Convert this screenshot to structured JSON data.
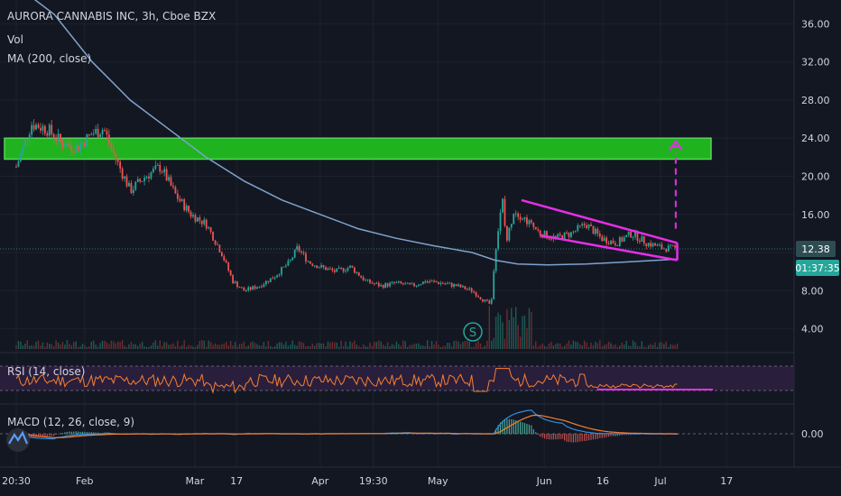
{
  "chart_data": {
    "type": "candlestick",
    "title": "AURORA CANNABIS INC, 3h, Cboe BZX",
    "indicator_labels": [
      "Vol",
      "MA (200, close)"
    ],
    "y_ticks": [
      "36.00",
      "32.00",
      "28.00",
      "24.00",
      "20.00",
      "16.00",
      "12.00",
      "8.00",
      "4.00"
    ],
    "y_tick_values": [
      36,
      32,
      28,
      24,
      20,
      16,
      12,
      8,
      4
    ],
    "ylim": [
      1.5,
      38.5
    ],
    "x_ticks": [
      {
        "label": "20:30",
        "t": 0.0
      },
      {
        "label": "Feb",
        "t": 0.09
      },
      {
        "label": "Mar",
        "t": 0.235
      },
      {
        "label": "17",
        "t": 0.29
      },
      {
        "label": "Apr",
        "t": 0.4
      },
      {
        "label": "19:30",
        "t": 0.47
      },
      {
        "label": "May",
        "t": 0.555
      },
      {
        "label": "Jun",
        "t": 0.695
      },
      {
        "label": "16",
        "t": 0.772
      },
      {
        "label": "Jul",
        "t": 0.848
      },
      {
        "label": "17",
        "t": 0.935
      }
    ],
    "price_path": [
      [
        0.0,
        21.0
      ],
      [
        0.02,
        25.5
      ],
      [
        0.04,
        25.0
      ],
      [
        0.06,
        23.5
      ],
      [
        0.08,
        23.0
      ],
      [
        0.1,
        24.5
      ],
      [
        0.115,
        25.0
      ],
      [
        0.13,
        22.0
      ],
      [
        0.15,
        18.5
      ],
      [
        0.17,
        20.0
      ],
      [
        0.19,
        21.0
      ],
      [
        0.21,
        18.0
      ],
      [
        0.23,
        16.0
      ],
      [
        0.25,
        15.0
      ],
      [
        0.27,
        12.0
      ],
      [
        0.285,
        9.0
      ],
      [
        0.3,
        8.0
      ],
      [
        0.32,
        8.5
      ],
      [
        0.34,
        9.5
      ],
      [
        0.36,
        11.0
      ],
      [
        0.37,
        12.5
      ],
      [
        0.385,
        11.0
      ],
      [
        0.4,
        10.5
      ],
      [
        0.42,
        10.0
      ],
      [
        0.44,
        10.5
      ],
      [
        0.46,
        9.0
      ],
      [
        0.48,
        8.5
      ],
      [
        0.5,
        8.8
      ],
      [
        0.52,
        8.5
      ],
      [
        0.54,
        9.0
      ],
      [
        0.56,
        8.8
      ],
      [
        0.58,
        8.5
      ],
      [
        0.6,
        8.0
      ],
      [
        0.615,
        7.0
      ],
      [
        0.625,
        6.5
      ],
      [
        0.63,
        12.0
      ],
      [
        0.64,
        17.5
      ],
      [
        0.645,
        13.0
      ],
      [
        0.655,
        16.5
      ],
      [
        0.67,
        15.5
      ],
      [
        0.69,
        14.0
      ],
      [
        0.71,
        13.5
      ],
      [
        0.73,
        14.0
      ],
      [
        0.75,
        15.0
      ],
      [
        0.77,
        13.5
      ],
      [
        0.79,
        13.0
      ],
      [
        0.81,
        14.0
      ],
      [
        0.83,
        13.0
      ],
      [
        0.85,
        12.5
      ],
      [
        0.87,
        12.38
      ]
    ],
    "last_price_label": "12.38",
    "countdown_label": "01:37:35",
    "resistance_zone": [
      21.8,
      24.0
    ],
    "ma200_label": "MA (200, close)",
    "annotations": {
      "split_marker": "S",
      "pattern": "falling wedge",
      "target_arrow": "up"
    },
    "rsi": {
      "label": "RSI (14, close)",
      "upper": 70,
      "lower": 30
    },
    "macd": {
      "label": "MACD (12, 26, close, 9)",
      "zero_label": "0.00"
    }
  },
  "colors": {
    "background": "#131722",
    "up": "#26a69a",
    "down": "#ef5350",
    "zone_fill": "#1fb31f",
    "zone_border": "#5bd35b",
    "ma": "#7fa3cc",
    "wedge": "#e62ee6",
    "rsi_line": "#f5802f",
    "rsi_band": "#2a1e3d",
    "macd_line": "#2f8fe6",
    "signal_line": "#f5802f",
    "price_label_bg": "#2e4d52",
    "countdown_bg": "#26a69a"
  }
}
